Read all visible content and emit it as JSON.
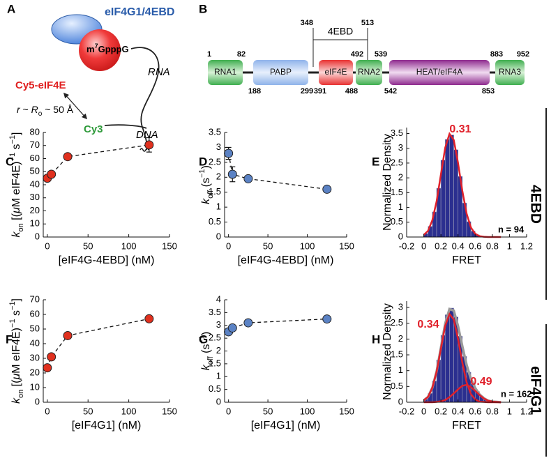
{
  "panel_a": {
    "label": "A",
    "protein": "eIF4G1/4EBD",
    "cap": [
      "m",
      "7",
      "GpppG"
    ],
    "rna": "RNA",
    "dye_protein": "Cy5-eIF4E",
    "distance": [
      "r",
      " ~ ",
      "R",
      "o",
      " ~ 50 Å"
    ],
    "dye_dna": "Cy3",
    "dna": "DNA"
  },
  "panel_b": {
    "label": "B",
    "domains": [
      {
        "name": "RNA1",
        "start": 1,
        "end": 82
      },
      {
        "name": "PABP",
        "start": 188,
        "end": 299
      },
      {
        "name": "eIF4E",
        "start": 391,
        "end": 488
      },
      {
        "name": "RNA2",
        "start": 492,
        "end": 539
      },
      {
        "name": "HEAT/eIF4A",
        "start": 542,
        "end": 853
      },
      {
        "name": "RNA3",
        "start": 883,
        "end": 952
      }
    ],
    "bracket": {
      "name": "4EBD",
      "start": 348,
      "end": 513
    }
  },
  "chart_data": [
    {
      "type": "scatter",
      "label": "C",
      "xlabel": "[eIF4G-4EBD] (nM)",
      "ylabel": [
        "k",
        "on",
        " [(",
        "μ",
        "M eIF4E)",
        "−1",
        " s",
        "−1",
        "]"
      ],
      "x": [
        0,
        5,
        25,
        125
      ],
      "values": [
        45,
        48,
        61.5,
        70.5
      ],
      "errors": [
        1.5,
        1.5,
        1.5,
        5.5
      ],
      "color": "#e0301e",
      "line": "dashed",
      "xlim": [
        -5,
        150
      ],
      "xticks": [
        0,
        50,
        100,
        150
      ],
      "ylim": [
        0,
        80
      ],
      "yticks": [
        0,
        10,
        20,
        30,
        40,
        50,
        60,
        70,
        80
      ]
    },
    {
      "type": "scatter",
      "label": "D",
      "xlabel": "[eIF4G-4EBD] (nM)",
      "ylabel": [
        "k",
        "off",
        " (s",
        "−1",
        ")"
      ],
      "x": [
        0,
        5,
        25,
        125
      ],
      "values": [
        2.8,
        2.1,
        1.95,
        1.6
      ],
      "errors": [
        0.2,
        0.25,
        0.05,
        0.05
      ],
      "color": "#5b82c4",
      "line": "dashed",
      "xlim": [
        -5,
        150
      ],
      "xticks": [
        0,
        50,
        100,
        150
      ],
      "ylim": [
        0,
        3.5
      ],
      "yticks": [
        0,
        0.5,
        1,
        1.5,
        2,
        2.5,
        3,
        3.5
      ]
    },
    {
      "type": "histogram",
      "label": "E",
      "xlabel": "FRET",
      "ylabel": "Normalized Density",
      "bins": [
        0,
        0.05,
        0.1,
        0.15,
        0.2,
        0.25,
        0.3,
        0.35,
        0.4,
        0.45,
        0.5,
        0.55,
        0.6,
        0.65,
        0.7,
        0.75,
        0.8,
        0.85
      ],
      "values": [
        0.12,
        0.36,
        0.85,
        1.65,
        2.6,
        3.3,
        3.45,
        2.95,
        2.05,
        1.15,
        0.52,
        0.2,
        0.07,
        0.03,
        0.02,
        0.01,
        0.01
      ],
      "color": "#2b2f8f",
      "fit_x": [
        0,
        0.05,
        0.1,
        0.15,
        0.2,
        0.25,
        0.3,
        0.35,
        0.4,
        0.45,
        0.5,
        0.55,
        0.6,
        0.65,
        0.7,
        0.75,
        0.8,
        0.85,
        0.9
      ],
      "fits": [
        {
          "color": "#e0202a",
          "values": [
            0.07,
            0.21,
            0.57,
            1.21,
            2.12,
            3.02,
            3.49,
            3.28,
            2.5,
            1.56,
            0.79,
            0.32,
            0.11,
            0.03,
            0.01,
            0,
            0,
            0,
            0
          ]
        }
      ],
      "peak_labels": [
        0.31
      ],
      "n_label": "n = 94",
      "xlim": [
        -0.2,
        1.2
      ],
      "xticks": [
        -0.2,
        0,
        0.2,
        0.4,
        0.6,
        0.8,
        1,
        1.2
      ],
      "ylim": [
        0,
        3.7
      ],
      "yticks": [
        0,
        0.5,
        1,
        1.5,
        2,
        2.5,
        3,
        3.5
      ]
    },
    {
      "type": "scatter",
      "label": "F",
      "xlabel": "[eIF4G1] (nM)",
      "ylabel": [
        "k",
        "on",
        " [(",
        "μ",
        "M eIF4E)",
        "−1",
        " s",
        "−1",
        "]"
      ],
      "x": [
        0,
        5,
        25,
        125
      ],
      "values": [
        23.5,
        31,
        45.5,
        57
      ],
      "errors": [
        1.5,
        1,
        1,
        1
      ],
      "color": "#e0301e",
      "line": "dashed",
      "xlim": [
        -5,
        150
      ],
      "xticks": [
        0,
        50,
        100,
        150
      ],
      "ylim": [
        0,
        70
      ],
      "yticks": [
        0,
        10,
        20,
        30,
        40,
        50,
        60,
        70
      ]
    },
    {
      "type": "scatter",
      "label": "G",
      "xlabel": "[eIF4G1] (nM)",
      "ylabel": [
        "k",
        "off",
        " (s",
        "−1",
        ")"
      ],
      "x": [
        0,
        5,
        25,
        125
      ],
      "values": [
        2.75,
        2.9,
        3.1,
        3.25
      ],
      "errors": [
        0.1,
        0.05,
        0.05,
        0.05
      ],
      "color": "#5b82c4",
      "line": "dashed",
      "xlim": [
        -5,
        150
      ],
      "xticks": [
        0,
        50,
        100,
        150
      ],
      "ylim": [
        0,
        4
      ],
      "yticks": [
        0,
        0.5,
        1,
        1.5,
        2,
        2.5,
        3,
        3.5,
        4
      ]
    },
    {
      "type": "histogram",
      "label": "H",
      "xlabel": "FRET",
      "ylabel": "Normalized Density",
      "bins": [
        0,
        0.05,
        0.1,
        0.15,
        0.2,
        0.25,
        0.3,
        0.35,
        0.4,
        0.45,
        0.5,
        0.55,
        0.6,
        0.65,
        0.7,
        0.75,
        0.8,
        0.85,
        0.9
      ],
      "values": [
        0.1,
        0.28,
        0.67,
        1.34,
        2.12,
        2.77,
        2.98,
        2.7,
        2.09,
        1.45,
        0.95,
        0.58,
        0.34,
        0.18,
        0.08,
        0.03,
        0.02,
        0.01
      ],
      "color": "#2b2f8f",
      "fit_x": [
        0,
        0.05,
        0.1,
        0.15,
        0.2,
        0.25,
        0.3,
        0.35,
        0.4,
        0.45,
        0.5,
        0.55,
        0.6,
        0.65,
        0.7,
        0.75,
        0.8,
        0.85,
        0.9
      ],
      "fits": [
        {
          "color": "#9a9a9a",
          "values": [
            0.06,
            0.17,
            0.46,
            0.98,
            1.73,
            2.49,
            2.95,
            2.9,
            2.41,
            1.77,
            1.18,
            0.74,
            0.45,
            0.25,
            0.13,
            0.05,
            0.02,
            0.01,
            0
          ]
        },
        {
          "color": "#e0202a",
          "values": [
            0.06,
            0.17,
            0.46,
            0.97,
            1.7,
            2.42,
            2.79,
            2.62,
            2.0,
            1.25,
            0.63,
            0.26,
            0.09,
            0.02,
            0.01,
            0,
            0,
            0,
            0
          ]
        },
        {
          "color": "#e0202a",
          "values": [
            0,
            0,
            0,
            0.01,
            0.03,
            0.07,
            0.16,
            0.28,
            0.41,
            0.52,
            0.55,
            0.48,
            0.36,
            0.23,
            0.12,
            0.05,
            0.02,
            0.01,
            0
          ]
        }
      ],
      "peak_labels": [
        0.34,
        0.49
      ],
      "n_label": "n = 162",
      "xlim": [
        -0.2,
        1.2
      ],
      "xticks": [
        -0.2,
        0,
        0.2,
        0.4,
        0.6,
        0.8,
        1,
        1.2
      ],
      "ylim": [
        0,
        3.2
      ],
      "yticks": [
        0,
        0.5,
        1,
        1.5,
        2,
        2.5,
        3
      ]
    }
  ],
  "side_labels": [
    "4EBD",
    "eIF4G1"
  ]
}
